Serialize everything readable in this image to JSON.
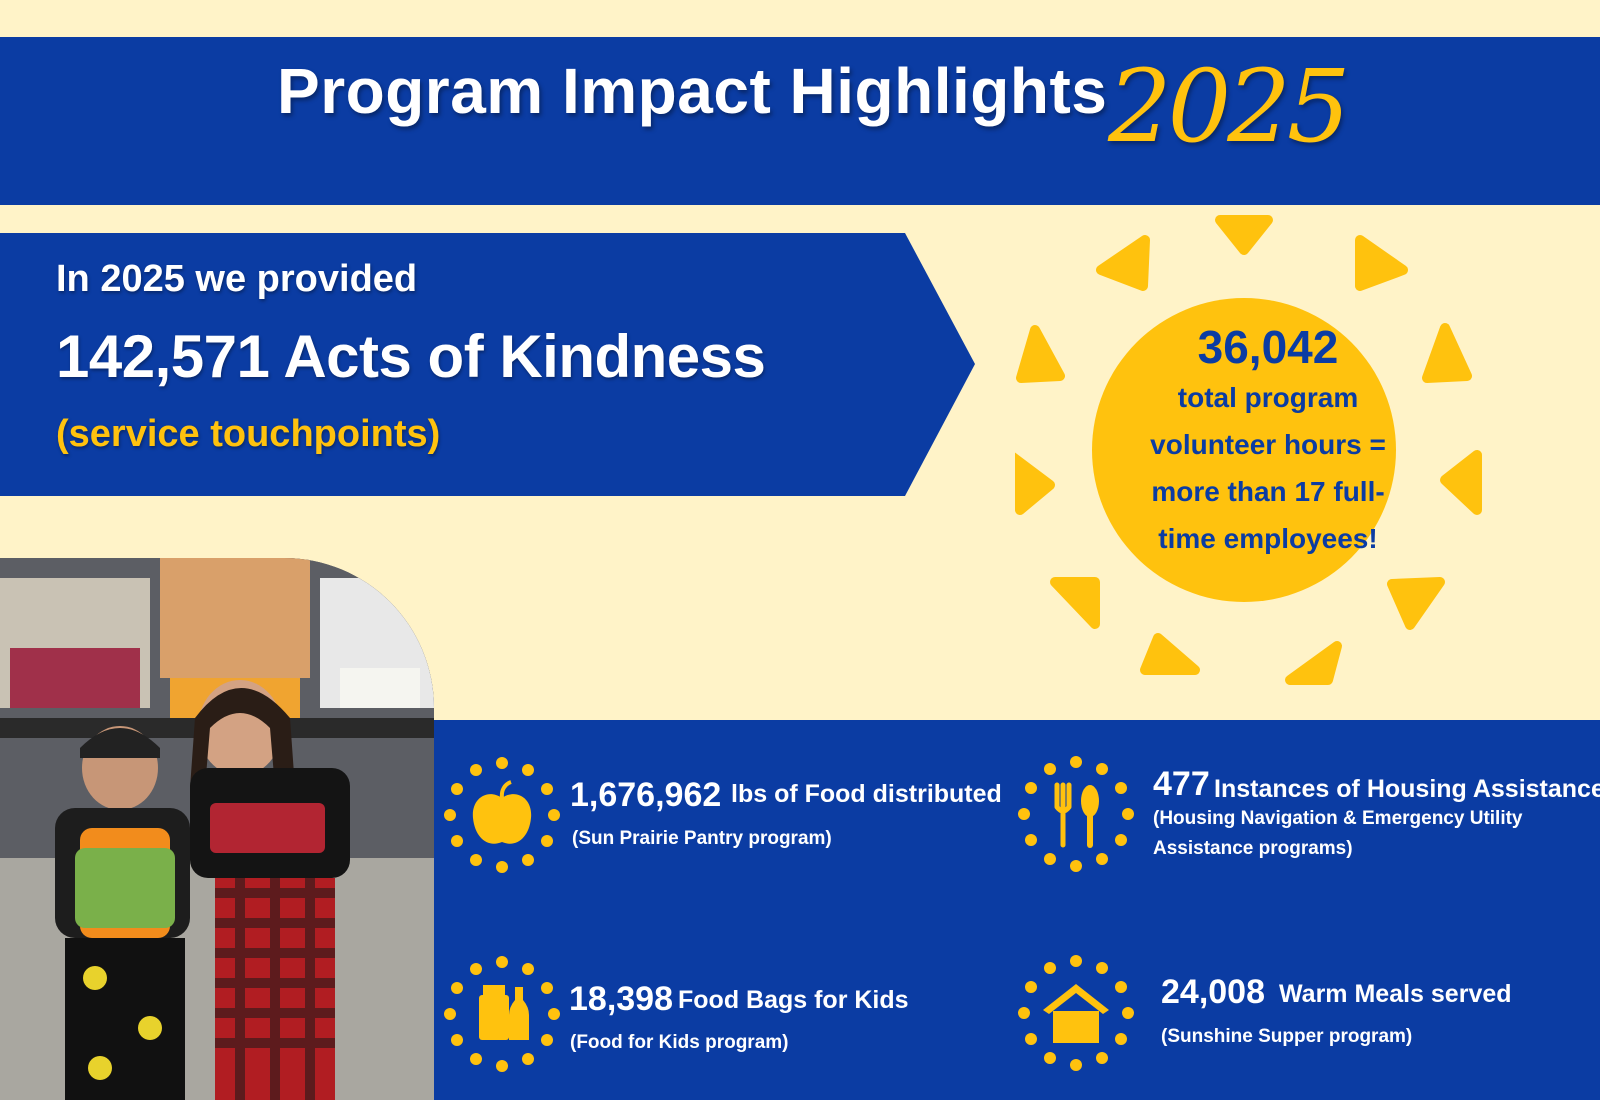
{
  "header": {
    "title": "Program Impact Highlights",
    "year": "2025"
  },
  "banner": {
    "intro": "In 2025 we provided",
    "headline": "142,571 Acts of Kindness",
    "subline": "(service touchpoints)"
  },
  "volunteer": {
    "number": "36,042",
    "lines": [
      "total program",
      "volunteer hours =",
      "more than 17 full-",
      "time employees!"
    ]
  },
  "stats": [
    {
      "icon": "apple-icon",
      "number": "1,676,962",
      "label": "lbs of Food distributed",
      "note": "(Sun Prairie Pantry program)"
    },
    {
      "icon": "fork-spoon-icon",
      "number": "477",
      "label": "Instances of Housing Assistance",
      "note": "(Housing Navigation & Emergency Utility",
      "note2": "Assistance programs)"
    },
    {
      "icon": "food-bag-icon",
      "number": "18,398",
      "label": "Food Bags for Kids",
      "note": "(Food for Kids program)"
    },
    {
      "icon": "house-icon",
      "number": "24,008",
      "label": "Warm Meals served",
      "note": "(Sunshine Supper program)"
    }
  ],
  "colors": {
    "blue": "#0b3ca3",
    "gold": "#ffc20e",
    "cream": "#fff3c8"
  }
}
